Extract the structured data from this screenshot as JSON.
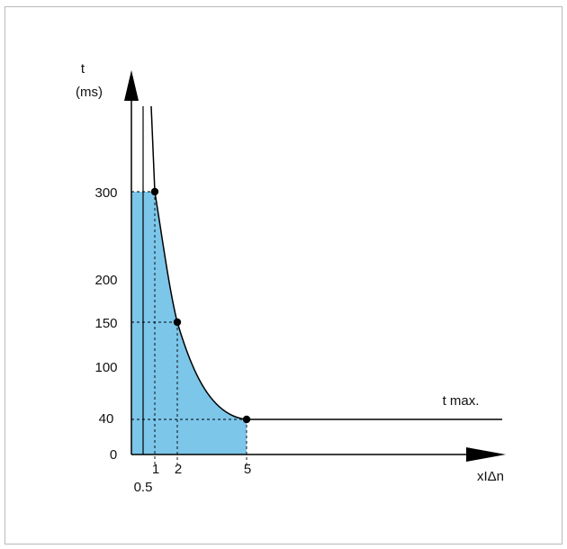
{
  "chart_data": {
    "type": "line",
    "title": "",
    "ylabel": "t",
    "yunit": "(ms)",
    "xlabel": "xIΔn",
    "y_ticks": [
      "300",
      "200",
      "150",
      "100",
      "40",
      "0"
    ],
    "x_ticks": [
      "0.5",
      "1",
      "2",
      "5"
    ],
    "points": [
      {
        "x": 1,
        "y": 300
      },
      {
        "x": 2,
        "y": 150
      },
      {
        "x": 5,
        "y": 40
      }
    ],
    "plateau": {
      "label": "t max.",
      "y": 40
    },
    "shaded_region": true,
    "colors": {
      "fill": "#7cc6ea",
      "line": "#000000",
      "dashed": "#000000"
    }
  }
}
